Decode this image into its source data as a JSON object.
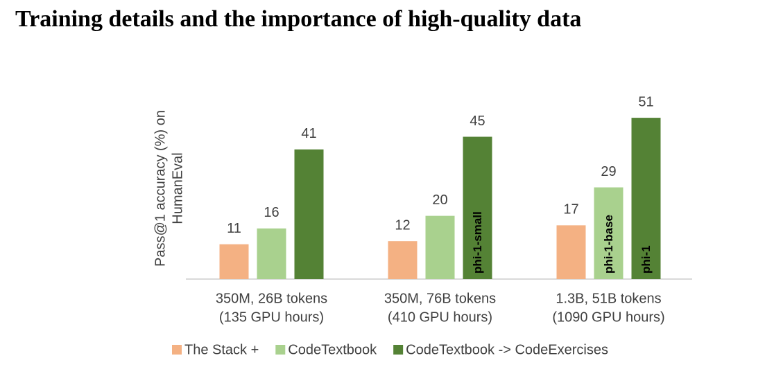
{
  "chart_data": {
    "type": "bar",
    "title": "Training details and the importance of high-quality data",
    "y_label": [
      "Pass@1 accuracy (%) on",
      "HumanEval"
    ],
    "categories": [
      [
        "350M, 26B tokens",
        "(135 GPU hours)"
      ],
      [
        "350M, 76B tokens",
        "(410 GPU hours)"
      ],
      [
        "1.3B, 51B tokens",
        "(1090 GPU hours)"
      ]
    ],
    "series": [
      {
        "name": "The Stack +",
        "color": "#f4b183",
        "values": [
          11,
          12,
          17
        ]
      },
      {
        "name": "CodeTextbook",
        "color": "#a9d18e",
        "values": [
          16,
          20,
          29
        ],
        "bar_labels": [
          null,
          null,
          "phi-1-base"
        ]
      },
      {
        "name": "CodeTextbook -> CodeExercises",
        "color": "#548235",
        "values": [
          41,
          45,
          51
        ],
        "bar_labels": [
          null,
          "phi-1-small",
          "phi-1"
        ]
      }
    ],
    "ylim": [
      0,
      60
    ],
    "legend": "bottom"
  }
}
